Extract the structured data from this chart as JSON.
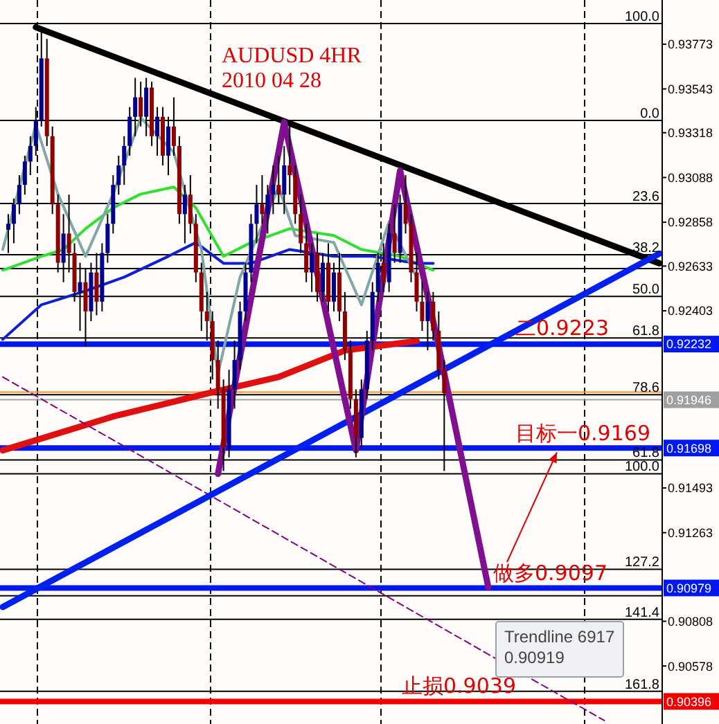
{
  "chart_data": {
    "type": "candlestick",
    "title": "AUDUSD 4HR",
    "subtitle": "2010 04 28",
    "categories": [
      null,
      null,
      null,
      null,
      null,
      null,
      null,
      null,
      null,
      null,
      null,
      null,
      null,
      null,
      null,
      null,
      null,
      null,
      null,
      null,
      null,
      null,
      null,
      null,
      null,
      null,
      null,
      null,
      null,
      null,
      null,
      null,
      null,
      null,
      null,
      null,
      null,
      null,
      null,
      null,
      null,
      null,
      null,
      null,
      null,
      null,
      null,
      null,
      null,
      null,
      null,
      null,
      null,
      null,
      null,
      null,
      null,
      null,
      null,
      null,
      null,
      null,
      null,
      null,
      null,
      null,
      null,
      null,
      null,
      null,
      null,
      null,
      null,
      null,
      null,
      null,
      null,
      null,
      null,
      null,
      null,
      null,
      null,
      null,
      null,
      null,
      null,
      null,
      null,
      null,
      null,
      null,
      null,
      null,
      null,
      null,
      null,
      null,
      null,
      null,
      null,
      null,
      null,
      null,
      null,
      null,
      null,
      null,
      null,
      null,
      null,
      null,
      null,
      null,
      null,
      null,
      null,
      null,
      null,
      null
    ],
    "ohlc": [
      null,
      [
        0.9282,
        0.929,
        0.927,
        0.9285
      ],
      [
        0.9285,
        0.9298,
        0.9275,
        0.9295
      ],
      [
        0.9295,
        0.931,
        0.929,
        0.9305
      ],
      [
        0.9305,
        0.932,
        0.93,
        0.9317
      ],
      [
        0.9317,
        0.933,
        0.931,
        0.9325
      ],
      [
        0.9325,
        0.9345,
        0.932,
        0.9338
      ],
      [
        0.9338,
        0.9386,
        0.9335,
        0.937
      ],
      [
        0.937,
        0.938,
        0.9325,
        0.933
      ],
      [
        0.933,
        0.9335,
        0.929,
        0.9295
      ],
      [
        0.9295,
        0.93,
        0.926,
        0.9265
      ],
      [
        0.9265,
        0.929,
        0.9255,
        0.928
      ],
      [
        0.928,
        0.93,
        0.926,
        0.927
      ],
      [
        0.927,
        0.9275,
        0.9245,
        0.925
      ],
      [
        0.925,
        0.9265,
        0.923,
        0.9255
      ],
      [
        0.9255,
        0.9262,
        0.9222,
        0.924
      ],
      [
        0.924,
        0.9265,
        0.9235,
        0.926
      ],
      [
        0.926,
        0.927,
        0.9238,
        0.9245
      ],
      [
        0.9245,
        0.9275,
        0.924,
        0.927
      ],
      [
        0.927,
        0.929,
        0.9265,
        0.9285
      ],
      [
        0.9285,
        0.931,
        0.928,
        0.9305
      ],
      [
        0.9305,
        0.932,
        0.93,
        0.9315
      ],
      [
        0.9315,
        0.933,
        0.9305,
        0.9325
      ],
      [
        0.9325,
        0.9345,
        0.932,
        0.934
      ],
      [
        0.934,
        0.936,
        0.933,
        0.935
      ],
      [
        0.935,
        0.9358,
        0.9335,
        0.934
      ],
      [
        0.934,
        0.936,
        0.933,
        0.9355
      ],
      [
        0.9355,
        0.9358,
        0.9325,
        0.933
      ],
      [
        0.933,
        0.9345,
        0.932,
        0.934
      ],
      [
        0.934,
        0.9345,
        0.9315,
        0.932
      ],
      [
        0.932,
        0.934,
        0.931,
        0.9335
      ],
      [
        0.9335,
        0.935,
        0.932,
        0.9325
      ],
      [
        0.9325,
        0.933,
        0.9285,
        0.929
      ],
      [
        0.929,
        0.9305,
        0.9275,
        0.93
      ],
      [
        0.93,
        0.931,
        0.928,
        0.9285
      ],
      [
        0.9285,
        0.929,
        0.9255,
        0.926
      ],
      [
        0.926,
        0.9265,
        0.923,
        0.924
      ],
      [
        0.924,
        0.925,
        0.9225,
        0.9235
      ],
      [
        0.9235,
        0.924,
        0.9205,
        0.9215
      ],
      [
        0.9215,
        0.9225,
        0.919,
        0.92
      ],
      [
        0.92,
        0.9205,
        0.9158,
        0.917
      ],
      [
        0.917,
        0.921,
        0.9165,
        0.92
      ],
      [
        0.92,
        0.9225,
        0.919,
        0.9215
      ],
      [
        0.9215,
        0.9245,
        0.921,
        0.924
      ],
      [
        0.924,
        0.9265,
        0.9235,
        0.926
      ],
      [
        0.926,
        0.929,
        0.9255,
        0.9285
      ],
      [
        0.9285,
        0.9305,
        0.9275,
        0.9295
      ],
      [
        0.9295,
        0.931,
        0.9285,
        0.929
      ],
      [
        0.929,
        0.9305,
        0.928,
        0.93
      ],
      [
        0.93,
        0.9315,
        0.929,
        0.9305
      ],
      [
        0.9305,
        0.932,
        0.9295,
        0.93
      ],
      [
        0.93,
        0.9325,
        0.929,
        0.9315
      ],
      [
        0.9315,
        0.9338,
        0.93,
        0.931
      ],
      [
        0.931,
        0.9315,
        0.9285,
        0.929
      ],
      [
        0.929,
        0.93,
        0.927,
        0.9275
      ],
      [
        0.9275,
        0.9285,
        0.9255,
        0.926
      ],
      [
        0.926,
        0.9275,
        0.925,
        0.927
      ],
      [
        0.927,
        0.928,
        0.9245,
        0.925
      ],
      [
        0.925,
        0.927,
        0.9245,
        0.9265
      ],
      [
        0.9265,
        0.9275,
        0.924,
        0.9245
      ],
      [
        0.9245,
        0.9265,
        0.924,
        0.926
      ],
      [
        0.926,
        0.927,
        0.9235,
        0.924
      ],
      [
        0.924,
        0.925,
        0.9215,
        0.922
      ],
      [
        0.922,
        0.9225,
        0.919,
        0.9195
      ],
      [
        0.9195,
        0.92,
        0.9165,
        0.9175
      ],
      [
        0.9175,
        0.9205,
        0.917,
        0.92
      ],
      [
        0.92,
        0.923,
        0.9195,
        0.9225
      ],
      [
        0.9225,
        0.9255,
        0.922,
        0.925
      ],
      [
        0.925,
        0.927,
        0.9245,
        0.9265
      ],
      [
        0.9265,
        0.9275,
        0.925,
        0.9255
      ],
      [
        0.9255,
        0.9285,
        0.925,
        0.928
      ],
      [
        0.928,
        0.9295,
        0.9265,
        0.927
      ],
      [
        0.927,
        0.93,
        0.9265,
        0.9295
      ],
      [
        0.9295,
        0.931,
        0.928,
        0.9285
      ],
      [
        0.9285,
        0.929,
        0.9255,
        0.926
      ],
      [
        0.926,
        0.927,
        0.924,
        0.9245
      ],
      [
        0.9245,
        0.9255,
        0.923,
        0.9235
      ],
      [
        0.9235,
        0.925,
        0.922,
        0.9245
      ],
      [
        0.9245,
        0.925,
        0.9225,
        0.923
      ],
      [
        0.923,
        0.924,
        0.9205,
        0.921
      ],
      [
        0.921,
        0.9215,
        0.9158,
        0.9198
      ],
      null,
      null,
      null,
      null,
      null,
      null,
      null,
      null,
      null,
      null,
      null,
      null,
      null,
      null,
      null,
      null,
      null,
      null,
      null,
      null,
      null,
      null,
      null,
      null,
      null,
      null,
      null,
      null,
      null,
      null,
      null,
      null,
      null,
      null,
      null,
      null,
      null,
      null,
      null
    ],
    "series": [
      {
        "type": "line",
        "color": "#e01010",
        "values": [
          0.91686,
          null,
          null,
          null,
          null,
          null,
          null,
          null,
          null,
          null,
          null,
          null,
          null,
          null,
          null,
          null,
          null,
          null,
          null,
          null,
          0.9186,
          null,
          null,
          null,
          null,
          null,
          null,
          null,
          null,
          null,
          null,
          null,
          null,
          null,
          null,
          null,
          null,
          null,
          0.91985,
          null,
          null,
          null,
          null,
          null,
          null,
          null,
          null,
          null,
          null,
          null,
          0.92063,
          null,
          null,
          null,
          null,
          null,
          null,
          null,
          null,
          null,
          null,
          null,
          0.92199,
          null,
          null,
          null,
          null,
          null,
          null,
          null,
          null,
          null,
          null,
          null,
          null,
          0.92248,
          null,
          null,
          null,
          null,
          null,
          null,
          null,
          null,
          null,
          null,
          null,
          null,
          null,
          null,
          null,
          null,
          null,
          null,
          null,
          null,
          null,
          null,
          null,
          null,
          null,
          null,
          null,
          null,
          null,
          null,
          null,
          null,
          null,
          null,
          null,
          null,
          null,
          null,
          null,
          null,
          null,
          null,
          null,
          null
        ]
      },
      {
        "type": "line",
        "color": "#30e030",
        "values": [
          0.92612,
          null,
          null,
          null,
          null,
          null,
          null,
          0.92683,
          null,
          null,
          null,
          0.92718,
          null,
          null,
          null,
          0.92825,
          null,
          null,
          null,
          null,
          0.92932,
          null,
          null,
          null,
          null,
          0.93003,
          null,
          null,
          null,
          null,
          null,
          0.93039,
          null,
          null,
          null,
          0.92932,
          null,
          null,
          null,
          null,
          0.92683,
          null,
          null,
          null,
          null,
          0.92754,
          null,
          null,
          null,
          null,
          null,
          null,
          0.92825,
          null,
          null,
          null,
          null,
          null,
          null,
          null,
          0.9279,
          null,
          null,
          null,
          null,
          0.92718,
          null,
          null,
          null,
          null,
          null,
          null,
          0.92683,
          null,
          null,
          null,
          null,
          null,
          0.92612,
          null,
          null,
          null,
          null,
          null,
          null,
          null,
          null,
          null,
          null,
          null,
          null,
          null,
          null,
          null,
          null,
          null,
          null,
          null,
          null,
          null,
          null,
          null,
          null,
          null,
          null,
          null,
          null,
          null,
          null,
          null,
          null,
          null,
          null,
          null,
          null,
          null,
          null,
          null,
          null,
          null
        ]
      },
      {
        "type": "line",
        "color": "#1020d0",
        "values": [
          0.92256,
          null,
          null,
          null,
          null,
          null,
          null,
          0.92434,
          null,
          null,
          null,
          null,
          null,
          null,
          null,
          0.92505,
          null,
          null,
          null,
          null,
          null,
          null,
          0.92576,
          null,
          null,
          null,
          null,
          null,
          null,
          null,
          0.92683,
          null,
          null,
          null,
          null,
          0.92754,
          null,
          null,
          null,
          null,
          0.92647,
          null,
          null,
          null,
          null,
          0.92647,
          null,
          null,
          null,
          null,
          null,
          null,
          0.92718,
          null,
          null,
          null,
          null,
          null,
          null,
          null,
          0.92683,
          null,
          null,
          null,
          null,
          null,
          null,
          0.92683,
          null,
          null,
          null,
          null,
          null,
          null,
          null,
          0.92647,
          null,
          null,
          0.92647,
          null,
          null,
          null,
          null,
          null,
          null,
          null,
          null,
          null,
          null,
          null,
          null,
          null,
          null,
          null,
          null,
          null,
          null,
          null,
          null,
          null,
          null,
          null,
          null,
          null,
          null,
          null,
          null,
          null,
          null,
          null,
          null,
          null,
          null,
          null,
          null,
          null,
          null,
          null,
          null,
          null
        ]
      },
      {
        "type": "line",
        "color": "#80a8a8",
        "values": [
          0.92718,
          null,
          null,
          null,
          null,
          null,
          0.93359,
          null,
          null,
          null,
          0.93003,
          null,
          null,
          null,
          null,
          0.92683,
          null,
          null,
          null,
          null,
          0.93003,
          null,
          null,
          null,
          null,
          0.93395,
          null,
          null,
          null,
          null,
          null,
          0.93217,
          null,
          null,
          null,
          null,
          0.92718,
          null,
          null,
          0.92078,
          null,
          null,
          null,
          0.92576,
          null,
          null,
          null,
          null,
          null,
          null,
          0.93039,
          null,
          null,
          0.9279,
          null,
          null,
          null,
          null,
          null,
          null,
          0.92754,
          null,
          null,
          null,
          null,
          0.92434,
          null,
          null,
          null,
          null,
          0.92861,
          null,
          null,
          null,
          null,
          0.92576,
          null,
          null,
          null,
          null,
          null,
          null,
          null,
          null,
          null,
          null,
          null,
          null,
          null,
          null,
          null,
          null,
          null,
          null,
          null,
          null,
          null,
          null,
          null,
          null,
          null,
          null,
          null,
          null,
          null,
          null,
          null,
          null,
          null,
          null,
          null,
          null,
          null,
          null,
          null,
          null,
          null,
          null,
          null,
          null
        ]
      },
      {
        "type": "line",
        "color": "#800080",
        "line_style": "dashed",
        "values": [
          0.92063,
          null,
          null,
          null,
          null,
          null,
          null,
          null,
          null,
          null,
          null,
          null,
          null,
          null,
          null,
          null,
          null,
          null,
          null,
          null,
          null,
          null,
          null,
          null,
          null,
          null,
          null,
          null,
          null,
          null,
          null,
          null,
          null,
          null,
          null,
          null,
          null,
          null,
          null,
          null,
          null,
          null,
          null,
          null,
          null,
          null,
          null,
          null,
          null,
          null,
          null,
          null,
          null,
          null,
          null,
          null,
          null,
          null,
          null,
          null,
          null,
          null,
          null,
          null,
          null,
          null,
          null,
          null,
          null,
          null,
          null,
          null,
          null,
          null,
          null,
          null,
          null,
          null,
          null,
          null,
          null,
          null,
          null,
          null,
          null,
          null,
          null,
          null,
          null,
          null,
          null,
          null,
          null,
          null,
          null,
          null,
          null,
          null,
          null,
          null,
          null,
          null,
          null,
          null,
          null,
          null,
          null,
          null,
          null,
          0.90298,
          null,
          null,
          null,
          null,
          null,
          null,
          null,
          null,
          null,
          null
        ]
      },
      {
        "type": "line",
        "color": "#000000",
        "values": [
          null,
          null,
          null,
          null,
          null,
          null,
          0.9386,
          null,
          null,
          null,
          null,
          null,
          null,
          null,
          null,
          null,
          null,
          null,
          null,
          null,
          null,
          null,
          null,
          null,
          null,
          null,
          null,
          null,
          null,
          null,
          null,
          null,
          null,
          null,
          null,
          null,
          null,
          null,
          null,
          null,
          null,
          null,
          null,
          null,
          null,
          null,
          null,
          null,
          null,
          null,
          null,
          null,
          null,
          null,
          null,
          null,
          null,
          null,
          null,
          null,
          null,
          null,
          null,
          null,
          null,
          null,
          null,
          null,
          null,
          null,
          null,
          null,
          null,
          null,
          null,
          null,
          null,
          null,
          null,
          null,
          null,
          null,
          null,
          null,
          null,
          null,
          null,
          null,
          null,
          null,
          null,
          null,
          null,
          null,
          null,
          null,
          null,
          null,
          null,
          null,
          null,
          null,
          null,
          null,
          null,
          null,
          null,
          null,
          null,
          null,
          null,
          null,
          null,
          null,
          null,
          null,
          null,
          null,
          null,
          0.92647
        ]
      },
      {
        "type": "line",
        "color": "#0020f0",
        "values": [
          0.90881,
          null,
          null,
          null,
          null,
          null,
          null,
          null,
          null,
          null,
          null,
          null,
          null,
          null,
          null,
          null,
          null,
          null,
          null,
          null,
          null,
          null,
          null,
          null,
          null,
          null,
          null,
          null,
          null,
          null,
          null,
          null,
          null,
          null,
          null,
          null,
          null,
          null,
          null,
          null,
          null,
          null,
          null,
          null,
          null,
          null,
          null,
          null,
          null,
          null,
          null,
          null,
          null,
          null,
          null,
          null,
          null,
          null,
          null,
          null,
          null,
          null,
          null,
          null,
          null,
          null,
          null,
          null,
          null,
          null,
          null,
          null,
          null,
          null,
          null,
          null,
          null,
          null,
          null,
          null,
          null,
          null,
          null,
          null,
          null,
          null,
          null,
          null,
          null,
          null,
          null,
          null,
          null,
          null,
          null,
          null,
          null,
          null,
          null,
          null,
          null,
          null,
          null,
          null,
          null,
          null,
          null,
          null,
          null,
          null,
          null,
          null,
          null,
          null,
          null,
          null,
          null,
          null,
          null,
          0.92697
        ]
      },
      {
        "type": "line",
        "color": "#801090",
        "values": [
          null,
          null,
          null,
          null,
          null,
          null,
          null,
          null,
          null,
          null,
          null,
          null,
          null,
          null,
          null,
          null,
          null,
          null,
          null,
          null,
          null,
          null,
          null,
          null,
          null,
          null,
          null,
          null,
          null,
          null,
          null,
          null,
          null,
          null,
          null,
          null,
          null,
          null,
          null,
          0.91565,
          null,
          null,
          null,
          null,
          null,
          null,
          null,
          null,
          null,
          null,
          null,
          0.93373,
          null,
          null,
          null,
          null,
          null,
          null,
          null,
          null,
          null,
          null,
          null,
          null,
          0.91686,
          null,
          null,
          null,
          null,
          null,
          null,
          null,
          0.93124,
          null,
          null,
          null,
          null,
          null,
          null,
          0.9222,
          null,
          null,
          null,
          null,
          null,
          null,
          null,
          null,
          0.90981,
          null,
          null,
          null,
          null,
          null,
          null,
          null,
          null,
          null,
          null,
          null,
          null,
          null,
          null,
          null,
          null,
          null,
          null,
          null,
          null,
          null,
          null,
          null,
          null,
          null,
          null,
          null,
          null,
          null,
          null,
          null
        ]
      }
    ],
    "ylim": [
      0.9028,
      0.94
    ],
    "yticks": [
      0.93773,
      0.93543,
      0.93318,
      0.93088,
      0.92858,
      0.92633,
      0.92403,
      0.91493,
      0.91263,
      0.90808,
      0.90578
    ],
    "tick_labels": "y",
    "ref_lines": [
      {
        "axis": "y",
        "value": 0.93879,
        "color": "#000000"
      },
      {
        "axis": "y",
        "value": 0.93381,
        "color": "#000000"
      },
      {
        "axis": "y",
        "value": 0.92954,
        "color": "#000000"
      },
      {
        "axis": "y",
        "value": 0.92691,
        "color": "#000000"
      },
      {
        "axis": "y",
        "value": 0.9262,
        "color": "#000000"
      },
      {
        "axis": "y",
        "value": 0.92477,
        "color": "#000000"
      },
      {
        "axis": "y",
        "value": 0.92264,
        "color": "#000000"
      },
      {
        "axis": "y",
        "value": 0.91972,
        "color": "#000000"
      },
      {
        "axis": "y",
        "value": 0.91637,
        "color": "#000000"
      },
      {
        "axis": "y",
        "value": 0.91566,
        "color": "#000000"
      },
      {
        "axis": "y",
        "value": 0.91075,
        "color": "#000000"
      },
      {
        "axis": "y",
        "value": 0.90939,
        "color": "#000000"
      },
      {
        "axis": "y",
        "value": 0.90818,
        "color": "#000000"
      },
      {
        "axis": "y",
        "value": 0.90448,
        "color": "#000000"
      },
      {
        "axis": "y",
        "value": 0.91985,
        "color": "#ff9020"
      },
      {
        "axis": "y",
        "value": 0.91946,
        "label": "0.91946",
        "color": "#a0a0a0"
      },
      {
        "axis": "y",
        "value": 0.92232,
        "label": "0.92232",
        "color": "#0018f0"
      },
      {
        "axis": "y",
        "value": 0.91698,
        "label": "0.91698",
        "color": "#0018f0"
      },
      {
        "axis": "y",
        "value": 0.90979,
        "label": "0.90979",
        "color": "#0018f0"
      },
      {
        "axis": "y",
        "value": 0.90396,
        "label": "0.90396",
        "color": "#f00000"
      }
    ],
    "annotations": [
      {
        "text": "二0.9223",
        "y": 0.9223
      },
      {
        "text": "目标一0.9169",
        "y": 0.9169
      },
      {
        "text": "做多0.9097",
        "y": 0.9097
      },
      {
        "text": "止损0.9039",
        "y": 0.9039
      },
      {
        "text": "100.0",
        "y": 0.93879
      },
      {
        "text": "0.0",
        "y": 0.93381
      },
      {
        "text": "23.6",
        "y": 0.92954
      },
      {
        "text": "38.2",
        "y": 0.92691
      },
      {
        "text": "50.0",
        "y": 0.92477
      },
      {
        "text": "61.8",
        "y": 0.92264
      },
      {
        "text": "78.6",
        "y": 0.91972
      },
      {
        "text": "61.8",
        "y": 0.91637
      },
      {
        "text": "100.0",
        "y": 0.91566
      },
      {
        "text": "127.2",
        "y": 0.91075
      },
      {
        "text": "141.4",
        "y": 0.90818
      },
      {
        "text": "161.8",
        "y": 0.90448
      },
      "Trendline 6917",
      "0.90919"
    ]
  }
}
